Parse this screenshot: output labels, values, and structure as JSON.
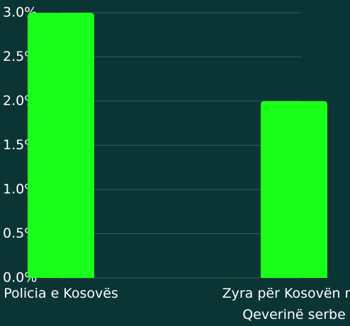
{
  "chart_data": {
    "type": "bar",
    "categories": [
      "Policia e Kosovës",
      "Zyra për Kosovën në Qeverinë serbe"
    ],
    "values": [
      3,
      2
    ],
    "color": "#19ff19",
    "ylim": [
      0,
      3
    ],
    "yticks": [
      {
        "value": 0,
        "label": "0.0%"
      },
      {
        "value": 0.5,
        "label": "0.5%"
      },
      {
        "value": 1,
        "label": "1.0%"
      },
      {
        "value": 1.5,
        "label": "1.5%"
      },
      {
        "value": 2,
        "label": "2.0%"
      },
      {
        "value": 2.5,
        "label": "2.5%"
      },
      {
        "value": 3,
        "label": "3.0%"
      }
    ],
    "grid": true
  }
}
